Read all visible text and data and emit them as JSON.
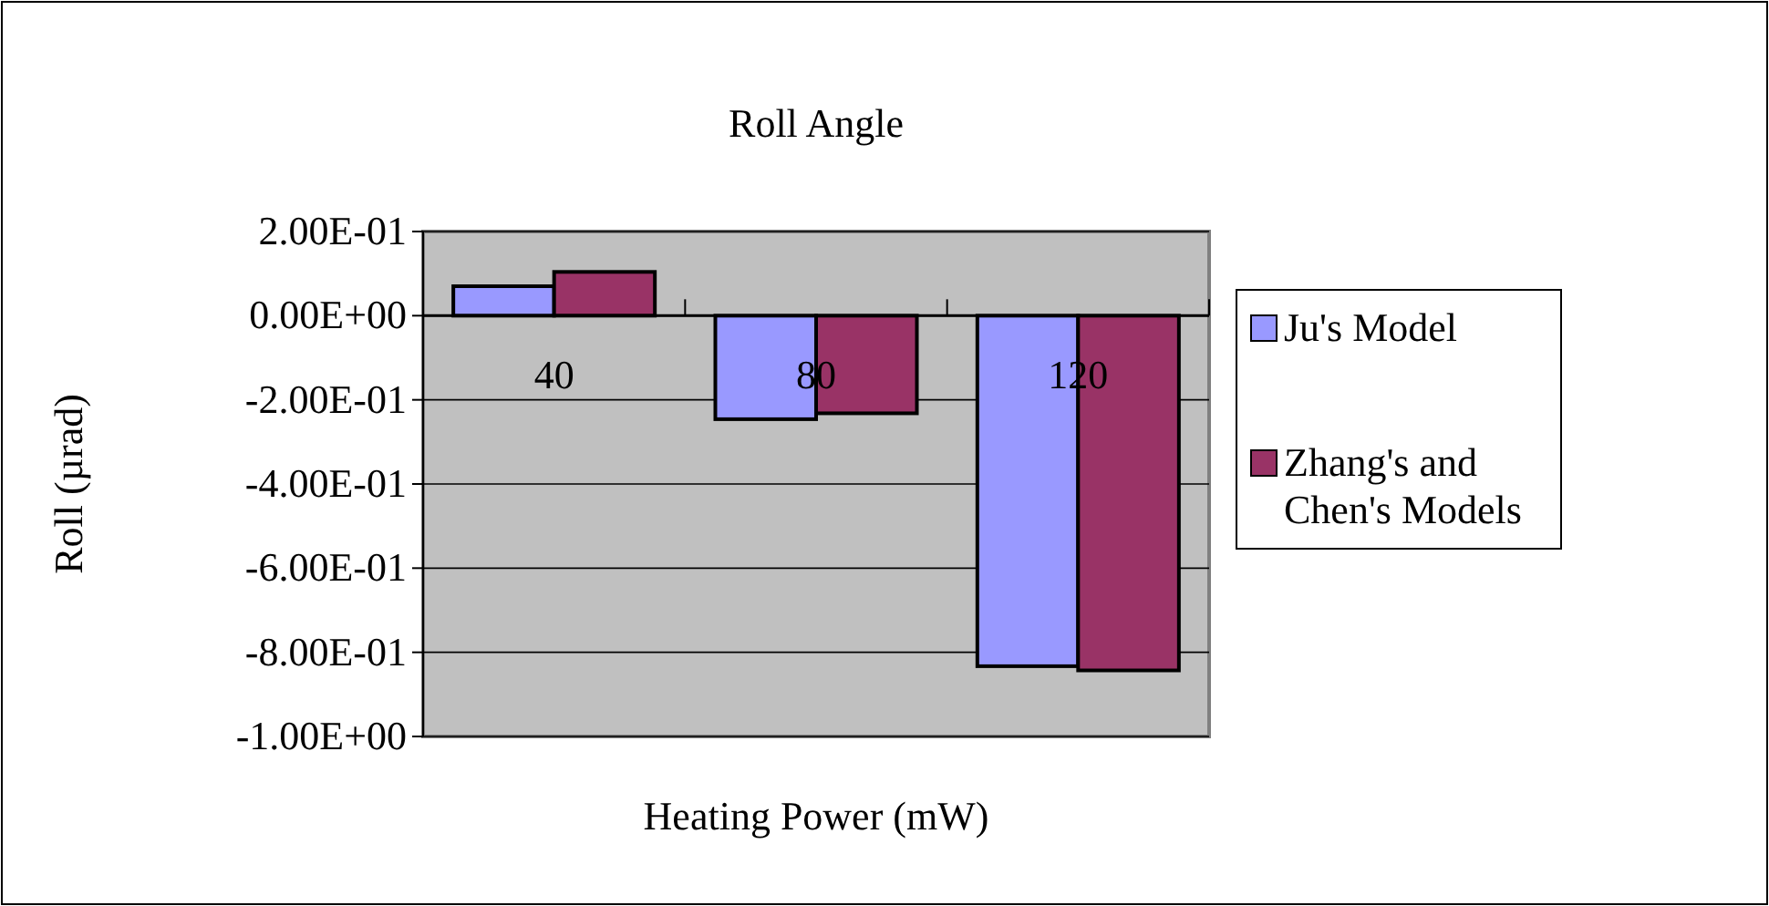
{
  "chart_data": {
    "type": "bar",
    "title": "Roll Angle",
    "xlabel": "Heating Power (mW)",
    "ylabel": "Roll (µrad)",
    "categories": [
      "40",
      "80",
      "120"
    ],
    "series": [
      {
        "name": "Ju's Model",
        "color": "#9999ff",
        "values": [
          0.07,
          -0.246,
          -0.833
        ]
      },
      {
        "name": "Zhang's and Chen's Models",
        "color": "#993366",
        "values": [
          0.104,
          -0.232,
          -0.843
        ]
      }
    ],
    "ylim": [
      -1,
      0.2
    ],
    "yticks": [
      {
        "value": 0.2,
        "label": "2.00E-01"
      },
      {
        "value": 0,
        "label": "0.00E+00"
      },
      {
        "value": -0.2,
        "label": "-2.00E-01"
      },
      {
        "value": -0.4,
        "label": "-4.00E-01"
      },
      {
        "value": -0.6,
        "label": "-6.00E-01"
      },
      {
        "value": -0.8,
        "label": "-8.00E-01"
      },
      {
        "value": -1,
        "label": "-1.00E+00"
      }
    ],
    "grid": "y",
    "legend": "right"
  }
}
